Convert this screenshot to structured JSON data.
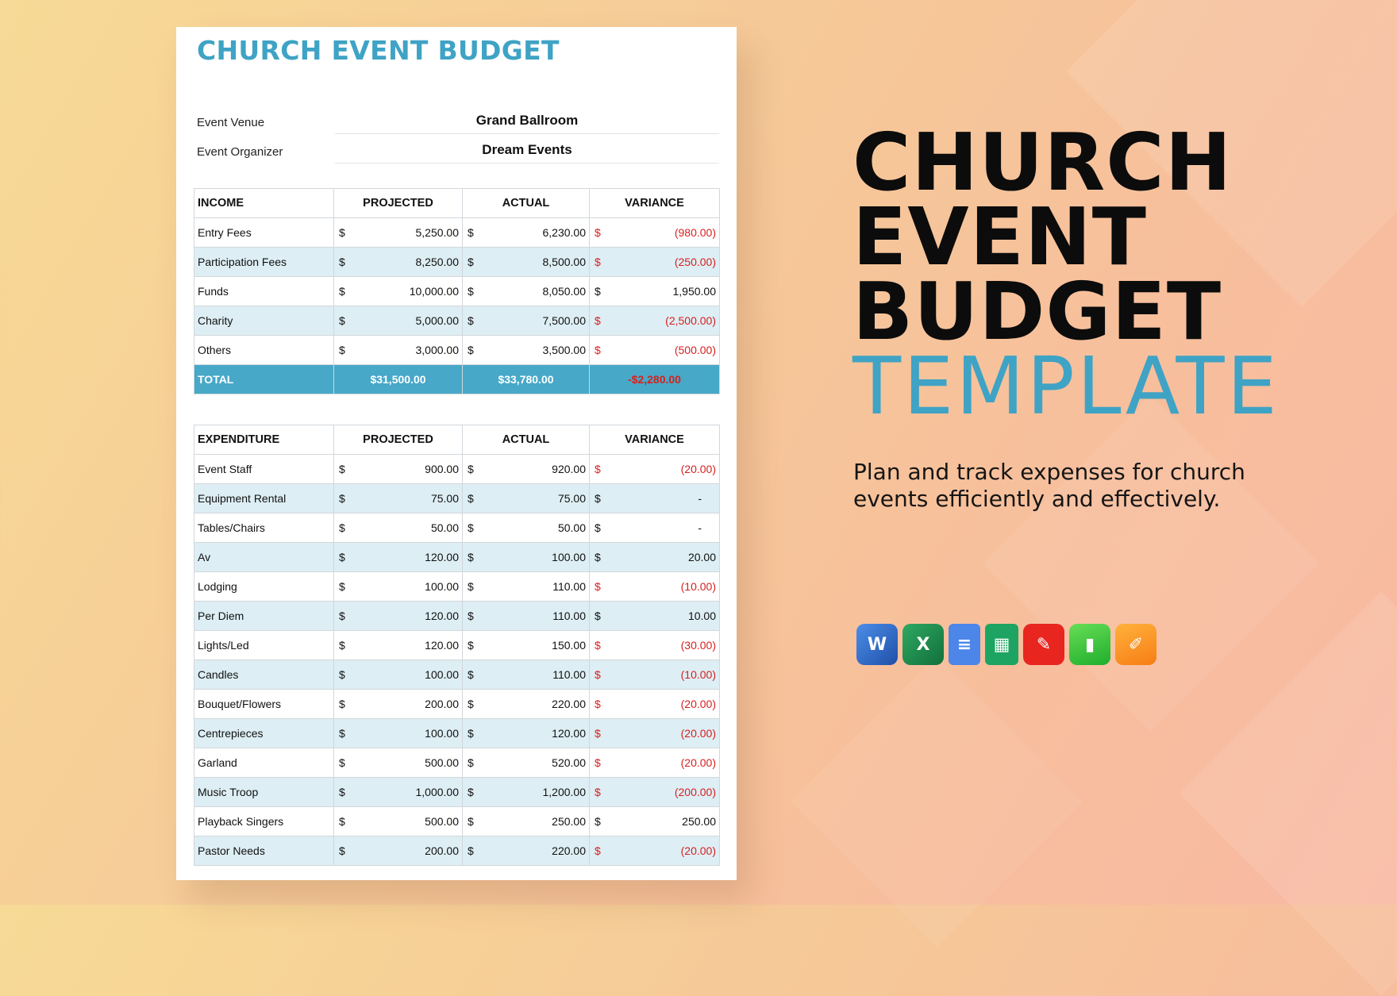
{
  "document": {
    "title": "CHURCH EVENT BUDGET",
    "venue": {
      "label": "Event Venue",
      "value": "Grand Ballroom"
    },
    "organizer": {
      "label": "Event Organizer",
      "value": "Dream Events"
    }
  },
  "income": {
    "headers": [
      "INCOME",
      "PROJECTED",
      "ACTUAL",
      "VARIANCE"
    ],
    "currency": "$",
    "rows": [
      {
        "name": "Entry Fees",
        "projected": "5,250.00",
        "actual": "6,230.00",
        "variance": "(980.00)",
        "negative": true
      },
      {
        "name": "Participation Fees",
        "projected": "8,250.00",
        "actual": "8,500.00",
        "variance": "(250.00)",
        "negative": true
      },
      {
        "name": "Funds",
        "projected": "10,000.00",
        "actual": "8,050.00",
        "variance": "1,950.00",
        "negative": false
      },
      {
        "name": "Charity",
        "projected": "5,000.00",
        "actual": "7,500.00",
        "variance": "(2,500.00)",
        "negative": true
      },
      {
        "name": "Others",
        "projected": "3,000.00",
        "actual": "3,500.00",
        "variance": "(500.00)",
        "negative": true
      }
    ],
    "total": {
      "label": "TOTAL",
      "projected": "$31,500.00",
      "actual": "$33,780.00",
      "variance": "-$2,280.00"
    }
  },
  "expenditure": {
    "headers": [
      "EXPENDITURE",
      "PROJECTED",
      "ACTUAL",
      "VARIANCE"
    ],
    "currency": "$",
    "rows": [
      {
        "name": "Event Staff",
        "projected": "900.00",
        "actual": "920.00",
        "variance": "(20.00)",
        "negative": true
      },
      {
        "name": "Equipment Rental",
        "projected": "75.00",
        "actual": "75.00",
        "variance": "-",
        "negative": false
      },
      {
        "name": "Tables/Chairs",
        "projected": "50.00",
        "actual": "50.00",
        "variance": "-",
        "negative": false
      },
      {
        "name": "Av",
        "projected": "120.00",
        "actual": "100.00",
        "variance": "20.00",
        "negative": false
      },
      {
        "name": "Lodging",
        "projected": "100.00",
        "actual": "110.00",
        "variance": "(10.00)",
        "negative": true
      },
      {
        "name": "Per Diem",
        "projected": "120.00",
        "actual": "110.00",
        "variance": "10.00",
        "negative": false
      },
      {
        "name": "Lights/Led",
        "projected": "120.00",
        "actual": "150.00",
        "variance": "(30.00)",
        "negative": true
      },
      {
        "name": "Candles",
        "projected": "100.00",
        "actual": "110.00",
        "variance": "(10.00)",
        "negative": true
      },
      {
        "name": "Bouquet/Flowers",
        "projected": "200.00",
        "actual": "220.00",
        "variance": "(20.00)",
        "negative": true
      },
      {
        "name": "Centrepieces",
        "projected": "100.00",
        "actual": "120.00",
        "variance": "(20.00)",
        "negative": true
      },
      {
        "name": "Garland",
        "projected": "500.00",
        "actual": "520.00",
        "variance": "(20.00)",
        "negative": true
      },
      {
        "name": "Music Troop",
        "projected": "1,000.00",
        "actual": "1,200.00",
        "variance": "(200.00)",
        "negative": true
      },
      {
        "name": "Playback Singers",
        "projected": "500.00",
        "actual": "250.00",
        "variance": "250.00",
        "negative": false
      },
      {
        "name": "Pastor Needs",
        "projected": "200.00",
        "actual": "220.00",
        "variance": "(20.00)",
        "negative": true
      }
    ]
  },
  "hero": {
    "lines": [
      "CHURCH",
      "EVENT",
      "BUDGET"
    ],
    "accent_line": "TEMPLATE",
    "tagline": "Plan and track expenses for church events efficiently and effectively."
  },
  "apps": [
    {
      "icon": "word-icon",
      "glyph": "W"
    },
    {
      "icon": "excel-icon",
      "glyph": "X"
    },
    {
      "icon": "google-docs-icon",
      "glyph": "≡"
    },
    {
      "icon": "google-sheets-icon",
      "glyph": "▦"
    },
    {
      "icon": "pdf-icon",
      "glyph": "✎"
    },
    {
      "icon": "numbers-icon",
      "glyph": "▮"
    },
    {
      "icon": "pages-icon",
      "glyph": "✐"
    }
  ],
  "colors": {
    "accent": "#3fa3c5",
    "negative": "#d81f1f",
    "row_alt": "#ddeef4",
    "total_bg": "#47a8c8"
  }
}
